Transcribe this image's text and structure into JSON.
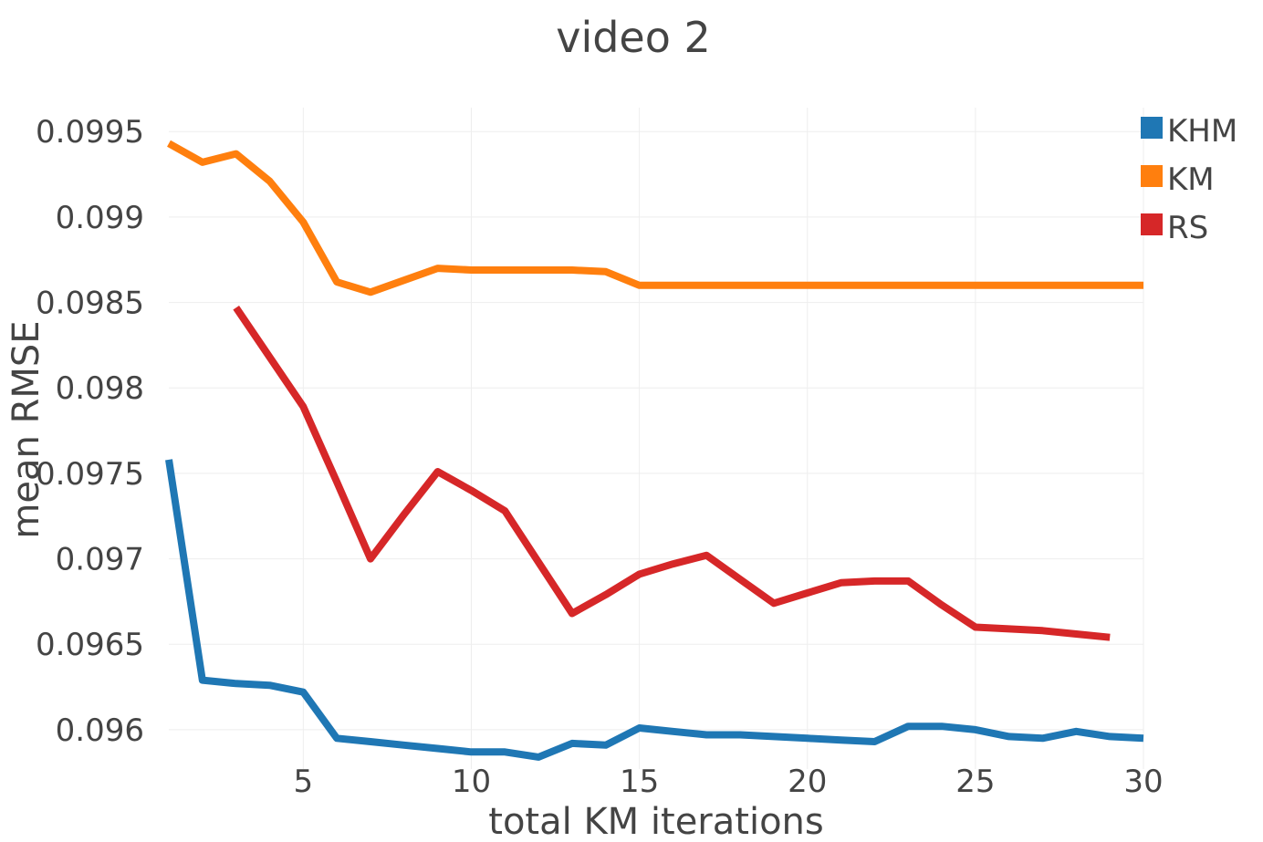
{
  "chart_data": {
    "type": "line",
    "title": "video 2",
    "xlabel": "total KM iterations",
    "ylabel": "mean RMSE",
    "xlim": [
      1,
      30
    ],
    "ylim": [
      0.09577,
      0.09964
    ],
    "xticks": [
      5,
      10,
      15,
      20,
      25,
      30
    ],
    "xtick_labels": [
      "5",
      "10",
      "15",
      "20",
      "25",
      "30"
    ],
    "yticks": [
      0.096,
      0.0965,
      0.097,
      0.0975,
      0.098,
      0.0985,
      0.099,
      0.0995
    ],
    "ytick_labels": [
      "0.096",
      "0.0965",
      "0.097",
      "0.0975",
      "0.098",
      "0.0985",
      "0.099",
      "0.0995"
    ],
    "grid": true,
    "legend_position": "top-right",
    "series": [
      {
        "name": "KHM",
        "color": "#1f77b4",
        "x": [
          1,
          2,
          3,
          4,
          5,
          6,
          7,
          8,
          9,
          10,
          11,
          12,
          13,
          14,
          15,
          16,
          17,
          18,
          19,
          20,
          21,
          22,
          23,
          24,
          25,
          26,
          27,
          28,
          29,
          30
        ],
        "y": [
          0.09758,
          0.09629,
          0.09627,
          0.09626,
          0.09622,
          0.09595,
          0.09593,
          0.09591,
          0.09589,
          0.09587,
          0.09587,
          0.09584,
          0.09592,
          0.09591,
          0.09601,
          0.09599,
          0.09597,
          0.09597,
          0.09596,
          0.09595,
          0.09594,
          0.09593,
          0.09602,
          0.09602,
          0.096,
          0.09596,
          0.09595,
          0.09599,
          0.09596,
          0.09595
        ]
      },
      {
        "name": "KM",
        "color": "#ff7f0e",
        "x": [
          1,
          2,
          3,
          4,
          5,
          6,
          7,
          8,
          9,
          10,
          11,
          12,
          13,
          14,
          15,
          16,
          17,
          18,
          19,
          20,
          21,
          22,
          23,
          24,
          25,
          26,
          27,
          28,
          29,
          30
        ],
        "y": [
          0.09943,
          0.09932,
          0.09937,
          0.09921,
          0.09897,
          0.09862,
          0.09856,
          0.09863,
          0.0987,
          0.09869,
          0.09869,
          0.09869,
          0.09869,
          0.09868,
          0.0986,
          0.0986,
          0.0986,
          0.0986,
          0.0986,
          0.0986,
          0.0986,
          0.0986,
          0.0986,
          0.0986,
          0.0986,
          0.0986,
          0.0986,
          0.0986,
          0.0986,
          0.0986
        ]
      },
      {
        "name": "RS",
        "color": "#d62728",
        "x": [
          3,
          4,
          5,
          6,
          7,
          8,
          9,
          10,
          11,
          12,
          13,
          14,
          15,
          16,
          17,
          18,
          19,
          20,
          21,
          22,
          23,
          24,
          25,
          26,
          27,
          28,
          29
        ],
        "y": [
          0.09847,
          0.09818,
          0.09789,
          0.09745,
          0.097,
          0.09726,
          0.09751,
          0.0974,
          0.09728,
          0.09698,
          0.09668,
          0.09679,
          0.09691,
          0.09697,
          0.09702,
          0.09688,
          0.09674,
          0.0968,
          0.09686,
          0.09687,
          0.09687,
          0.09673,
          0.0966,
          0.09659,
          0.09658,
          0.09656,
          0.09654
        ]
      }
    ]
  }
}
